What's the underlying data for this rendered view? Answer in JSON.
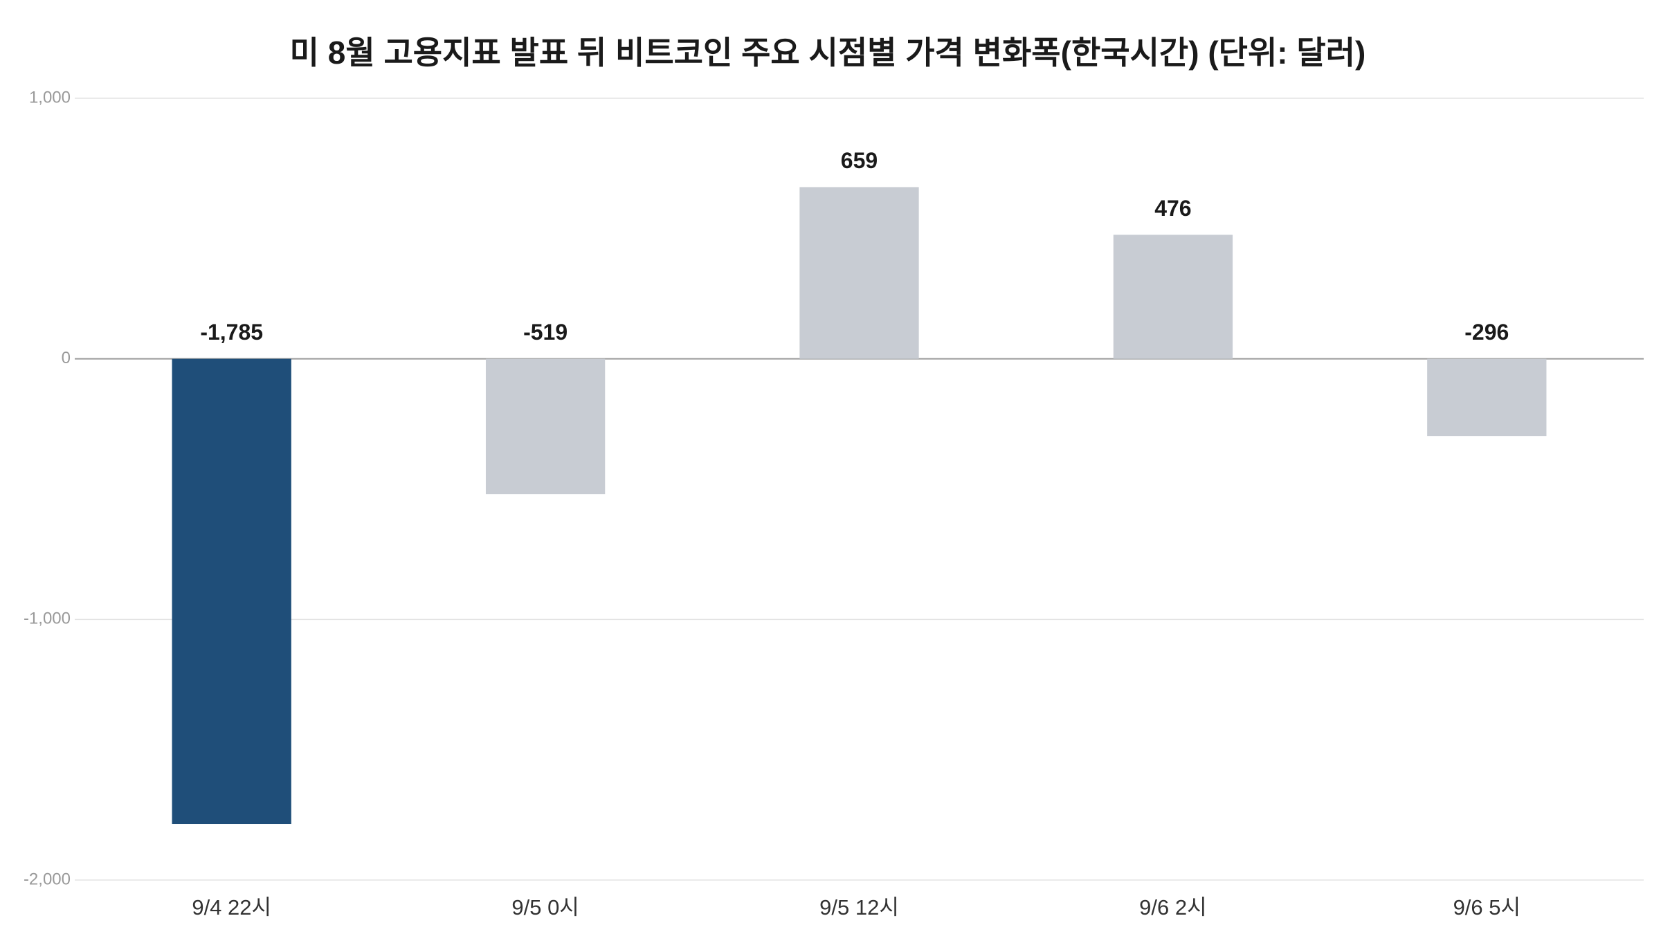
{
  "chart_data": {
    "type": "bar",
    "title": "미 8월 고용지표 발표 뒤 비트코인 주요 시점별 가격 변화폭(한국시간) (단위: 달러)",
    "categories": [
      "9/4 22시",
      "9/5 0시",
      "9/5 12시",
      "9/6 2시",
      "9/6 5시"
    ],
    "values": [
      -1785,
      -519,
      659,
      476,
      -296
    ],
    "value_labels": [
      "-1,785",
      "-519",
      "659",
      "476",
      "-296"
    ],
    "colors": [
      "#1f4e79",
      "#c8ccd3",
      "#c8ccd3",
      "#c8ccd3",
      "#c8ccd3"
    ],
    "ylim": [
      -2000,
      1000
    ],
    "yticks": [
      {
        "value": -2000,
        "label": "-2,000"
      },
      {
        "value": -1000,
        "label": "-1,000"
      },
      0,
      {
        "value": 1000,
        "label": "1,000"
      }
    ],
    "grid": true
  }
}
